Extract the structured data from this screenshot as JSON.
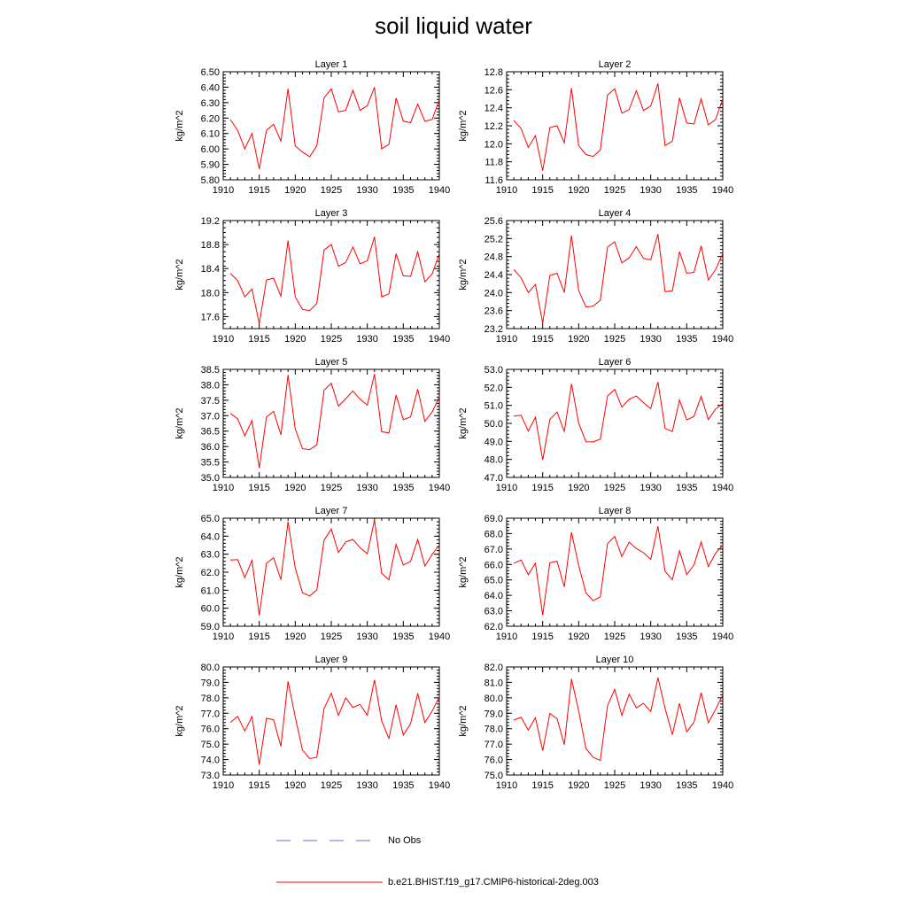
{
  "figure": {
    "title": "soil liquid water",
    "colors": {
      "series": "#ff0000",
      "obs": "#6a6acd",
      "axis": "#000000"
    }
  },
  "legend": {
    "items": [
      {
        "label": "No Obs",
        "style": "dashed",
        "color": "#6a6acd"
      },
      {
        "label": "b.e21.BHIST.f19_g17.CMIP6-historical-2deg.003",
        "style": "solid",
        "color": "#ff0000"
      }
    ]
  },
  "chart_data": [
    {
      "type": "line",
      "title": "Layer 1",
      "ylabel": "kg/m^2",
      "x": [
        1911,
        1912,
        1913,
        1914,
        1915,
        1916,
        1917,
        1918,
        1919,
        1920,
        1921,
        1922,
        1923,
        1924,
        1925,
        1926,
        1927,
        1928,
        1929,
        1930,
        1931,
        1932,
        1933,
        1934,
        1935,
        1936,
        1937,
        1938,
        1939,
        1940
      ],
      "xlim": [
        1910,
        1940
      ],
      "xticks": [
        "1910",
        "1915",
        "1920",
        "1925",
        "1930",
        "1935",
        "1940"
      ],
      "ylim": [
        5.8,
        6.5
      ],
      "yticks": [
        "5.80",
        "5.90",
        "6.00",
        "6.10",
        "6.20",
        "6.30",
        "6.40",
        "6.50"
      ],
      "series": [
        {
          "values": [
            6.19,
            6.12,
            6.0,
            6.1,
            5.87,
            6.12,
            6.16,
            6.05,
            6.39,
            6.02,
            5.98,
            5.95,
            6.02,
            6.33,
            6.39,
            6.24,
            6.25,
            6.38,
            6.25,
            6.28,
            6.4,
            6.0,
            6.03,
            6.33,
            6.18,
            6.17,
            6.29,
            6.18,
            6.19,
            6.32
          ]
        }
      ]
    },
    {
      "type": "line",
      "title": "Layer 2",
      "ylabel": "kg/m^2",
      "x": [
        1911,
        1912,
        1913,
        1914,
        1915,
        1916,
        1917,
        1918,
        1919,
        1920,
        1921,
        1922,
        1923,
        1924,
        1925,
        1926,
        1927,
        1928,
        1929,
        1930,
        1931,
        1932,
        1933,
        1934,
        1935,
        1936,
        1937,
        1938,
        1939,
        1940
      ],
      "xlim": [
        1910,
        1940
      ],
      "xticks": [
        "1910",
        "1915",
        "1920",
        "1925",
        "1930",
        "1935",
        "1940"
      ],
      "ylim": [
        11.6,
        12.8
      ],
      "yticks": [
        "11.6",
        "11.8",
        "12.0",
        "12.2",
        "12.4",
        "12.6",
        "12.8"
      ],
      "series": [
        {
          "values": [
            12.26,
            12.17,
            11.96,
            12.09,
            11.7,
            12.18,
            12.2,
            12.01,
            12.62,
            11.98,
            11.88,
            11.86,
            11.93,
            12.54,
            12.61,
            12.34,
            12.38,
            12.59,
            12.37,
            12.42,
            12.67,
            11.98,
            12.03,
            12.51,
            12.23,
            12.22,
            12.5,
            12.21,
            12.27,
            12.5
          ]
        }
      ]
    },
    {
      "type": "line",
      "title": "Layer 3",
      "ylabel": "kg/m^2",
      "x": [
        1911,
        1912,
        1913,
        1914,
        1915,
        1916,
        1917,
        1918,
        1919,
        1920,
        1921,
        1922,
        1923,
        1924,
        1925,
        1926,
        1927,
        1928,
        1929,
        1930,
        1931,
        1932,
        1933,
        1934,
        1935,
        1936,
        1937,
        1938,
        1939,
        1940
      ],
      "xlim": [
        1910,
        1940
      ],
      "xticks": [
        "1910",
        "1915",
        "1920",
        "1925",
        "1930",
        "1935",
        "1940"
      ],
      "ylim": [
        17.4,
        19.2
      ],
      "yticks": [
        "17.6",
        "18.0",
        "18.4",
        "18.8",
        "19.2"
      ],
      "series": [
        {
          "values": [
            18.32,
            18.2,
            17.93,
            18.06,
            17.48,
            18.21,
            18.24,
            17.94,
            18.87,
            17.93,
            17.72,
            17.7,
            17.82,
            18.71,
            18.8,
            18.44,
            18.5,
            18.76,
            18.48,
            18.53,
            18.93,
            17.93,
            17.98,
            18.65,
            18.28,
            18.27,
            18.68,
            18.18,
            18.31,
            18.65
          ]
        }
      ]
    },
    {
      "type": "line",
      "title": "Layer 4",
      "ylabel": "kg/m^2",
      "x": [
        1911,
        1912,
        1913,
        1914,
        1915,
        1916,
        1917,
        1918,
        1919,
        1920,
        1921,
        1922,
        1923,
        1924,
        1925,
        1926,
        1927,
        1928,
        1929,
        1930,
        1931,
        1932,
        1933,
        1934,
        1935,
        1936,
        1937,
        1938,
        1939,
        1940
      ],
      "xlim": [
        1910,
        1940
      ],
      "xticks": [
        "1910",
        "1915",
        "1920",
        "1925",
        "1930",
        "1935",
        "1940"
      ],
      "ylim": [
        23.2,
        25.6
      ],
      "yticks": [
        "23.2",
        "23.6",
        "24.0",
        "24.4",
        "24.8",
        "25.2",
        "25.6"
      ],
      "series": [
        {
          "values": [
            24.51,
            24.33,
            24.0,
            24.18,
            23.32,
            24.38,
            24.43,
            24.0,
            25.27,
            24.05,
            23.68,
            23.7,
            23.83,
            25.01,
            25.13,
            24.66,
            24.77,
            25.02,
            24.76,
            24.73,
            25.3,
            24.02,
            24.04,
            24.91,
            24.43,
            24.45,
            25.04,
            24.28,
            24.51,
            24.87
          ]
        }
      ]
    },
    {
      "type": "line",
      "title": "Layer 5",
      "ylabel": "kg/m^2",
      "x": [
        1911,
        1912,
        1913,
        1914,
        1915,
        1916,
        1917,
        1918,
        1919,
        1920,
        1921,
        1922,
        1923,
        1924,
        1925,
        1926,
        1927,
        1928,
        1929,
        1930,
        1931,
        1932,
        1933,
        1934,
        1935,
        1936,
        1937,
        1938,
        1939,
        1940
      ],
      "xlim": [
        1910,
        1940
      ],
      "xticks": [
        "1910",
        "1915",
        "1920",
        "1925",
        "1930",
        "1935",
        "1940"
      ],
      "ylim": [
        35.0,
        38.5
      ],
      "yticks": [
        "35.0",
        "35.5",
        "36.0",
        "36.5",
        "37.0",
        "37.5",
        "38.0",
        "38.5"
      ],
      "series": [
        {
          "values": [
            37.07,
            36.9,
            36.35,
            36.84,
            35.3,
            36.95,
            37.14,
            36.38,
            38.32,
            36.57,
            35.93,
            35.9,
            36.05,
            37.83,
            38.05,
            37.31,
            37.55,
            37.8,
            37.53,
            37.34,
            38.35,
            36.48,
            36.44,
            37.67,
            36.87,
            36.96,
            37.86,
            36.81,
            37.12,
            37.6
          ]
        }
      ]
    },
    {
      "type": "line",
      "title": "Layer 6",
      "ylabel": "kg/m^2",
      "x": [
        1911,
        1912,
        1913,
        1914,
        1915,
        1916,
        1917,
        1918,
        1919,
        1920,
        1921,
        1922,
        1923,
        1924,
        1925,
        1926,
        1927,
        1928,
        1929,
        1930,
        1931,
        1932,
        1933,
        1934,
        1935,
        1936,
        1937,
        1938,
        1939,
        1940
      ],
      "xlim": [
        1910,
        1940
      ],
      "xticks": [
        "1910",
        "1915",
        "1920",
        "1925",
        "1930",
        "1935",
        "1940"
      ],
      "ylim": [
        47.0,
        53.0
      ],
      "yticks": [
        "47.0",
        "48.0",
        "49.0",
        "50.0",
        "51.0",
        "52.0",
        "53.0"
      ],
      "series": [
        {
          "values": [
            50.4,
            50.45,
            49.57,
            50.34,
            47.97,
            50.22,
            50.63,
            49.55,
            52.2,
            50.02,
            48.98,
            48.97,
            49.12,
            51.51,
            51.89,
            50.9,
            51.34,
            51.52,
            51.15,
            50.82,
            52.3,
            49.72,
            49.55,
            51.3,
            50.19,
            50.39,
            51.5,
            50.21,
            50.79,
            51.1
          ]
        }
      ]
    },
    {
      "type": "line",
      "title": "Layer 7",
      "ylabel": "kg/m^2",
      "x": [
        1911,
        1912,
        1913,
        1914,
        1915,
        1916,
        1917,
        1918,
        1919,
        1920,
        1921,
        1922,
        1923,
        1924,
        1925,
        1926,
        1927,
        1928,
        1929,
        1930,
        1931,
        1932,
        1933,
        1934,
        1935,
        1936,
        1937,
        1938,
        1939,
        1940
      ],
      "xlim": [
        1910,
        1940
      ],
      "xticks": [
        "1910",
        "1915",
        "1920",
        "1925",
        "1930",
        "1935",
        "1940"
      ],
      "ylim": [
        59.0,
        65.0
      ],
      "yticks": [
        "59.0",
        "60.0",
        "61.0",
        "62.0",
        "63.0",
        "64.0",
        "65.0"
      ],
      "series": [
        {
          "values": [
            62.68,
            62.7,
            61.7,
            62.66,
            59.6,
            62.49,
            62.8,
            61.58,
            64.8,
            62.24,
            60.86,
            60.68,
            61.01,
            63.78,
            64.4,
            63.09,
            63.68,
            63.82,
            63.36,
            63.02,
            64.9,
            61.94,
            61.58,
            63.55,
            62.4,
            62.6,
            63.82,
            62.34,
            62.99,
            63.5
          ]
        }
      ]
    },
    {
      "type": "line",
      "title": "Layer 8",
      "ylabel": "kg/m^2",
      "x": [
        1911,
        1912,
        1913,
        1914,
        1915,
        1916,
        1917,
        1918,
        1919,
        1920,
        1921,
        1922,
        1923,
        1924,
        1925,
        1926,
        1927,
        1928,
        1929,
        1930,
        1931,
        1932,
        1933,
        1934,
        1935,
        1936,
        1937,
        1938,
        1939,
        1940
      ],
      "xlim": [
        1910,
        1940
      ],
      "xticks": [
        "1910",
        "1915",
        "1920",
        "1925",
        "1930",
        "1935",
        "1940"
      ],
      "ylim": [
        62.0,
        69.0
      ],
      "yticks": [
        "62.0",
        "63.0",
        "64.0",
        "65.0",
        "66.0",
        "67.0",
        "68.0",
        "69.0"
      ],
      "series": [
        {
          "values": [
            66.08,
            66.29,
            65.34,
            66.08,
            62.72,
            66.11,
            66.21,
            64.54,
            68.09,
            65.94,
            64.17,
            63.66,
            63.9,
            67.35,
            67.81,
            66.51,
            67.45,
            67.04,
            66.76,
            66.33,
            68.48,
            65.56,
            65.01,
            66.89,
            65.34,
            65.97,
            67.47,
            65.86,
            66.73,
            67.25
          ]
        }
      ]
    },
    {
      "type": "line",
      "title": "Layer 9",
      "ylabel": "kg/m^2",
      "x": [
        1911,
        1912,
        1913,
        1914,
        1915,
        1916,
        1917,
        1918,
        1919,
        1920,
        1921,
        1922,
        1923,
        1924,
        1925,
        1926,
        1927,
        1928,
        1929,
        1930,
        1931,
        1932,
        1933,
        1934,
        1935,
        1936,
        1937,
        1938,
        1939,
        1940
      ],
      "xlim": [
        1910,
        1940
      ],
      "xticks": [
        "1910",
        "1915",
        "1920",
        "1925",
        "1930",
        "1935",
        "1940"
      ],
      "ylim": [
        73.0,
        80.0
      ],
      "yticks": [
        "73.0",
        "74.0",
        "75.0",
        "76.0",
        "77.0",
        "78.0",
        "79.0",
        "80.0"
      ],
      "series": [
        {
          "values": [
            76.41,
            76.8,
            75.85,
            76.78,
            73.67,
            76.67,
            76.58,
            74.86,
            79.07,
            76.77,
            74.61,
            74.06,
            74.15,
            77.31,
            78.3,
            76.86,
            77.99,
            77.38,
            77.58,
            76.86,
            79.16,
            76.51,
            75.37,
            77.55,
            75.59,
            76.31,
            78.29,
            76.39,
            77.14,
            78.06
          ]
        }
      ]
    },
    {
      "type": "line",
      "title": "Layer 10",
      "ylabel": "kg/m^2",
      "x": [
        1911,
        1912,
        1913,
        1914,
        1915,
        1916,
        1917,
        1918,
        1919,
        1920,
        1921,
        1922,
        1923,
        1924,
        1925,
        1926,
        1927,
        1928,
        1929,
        1930,
        1931,
        1932,
        1933,
        1934,
        1935,
        1936,
        1937,
        1938,
        1939,
        1940
      ],
      "xlim": [
        1910,
        1940
      ],
      "xticks": [
        "1910",
        "1915",
        "1920",
        "1925",
        "1930",
        "1935",
        "1940"
      ],
      "ylim": [
        75.0,
        82.0
      ],
      "yticks": [
        "75.0",
        "76.0",
        "77.0",
        "78.0",
        "79.0",
        "80.0",
        "81.0",
        "82.0"
      ],
      "series": [
        {
          "values": [
            78.56,
            78.74,
            77.91,
            78.71,
            76.58,
            78.99,
            78.65,
            76.96,
            81.22,
            79.17,
            76.72,
            76.15,
            75.95,
            79.49,
            80.54,
            78.86,
            80.24,
            79.35,
            79.64,
            79.11,
            81.31,
            79.32,
            77.61,
            79.64,
            77.8,
            78.42,
            80.34,
            78.38,
            79.26,
            80.19
          ]
        }
      ]
    }
  ]
}
